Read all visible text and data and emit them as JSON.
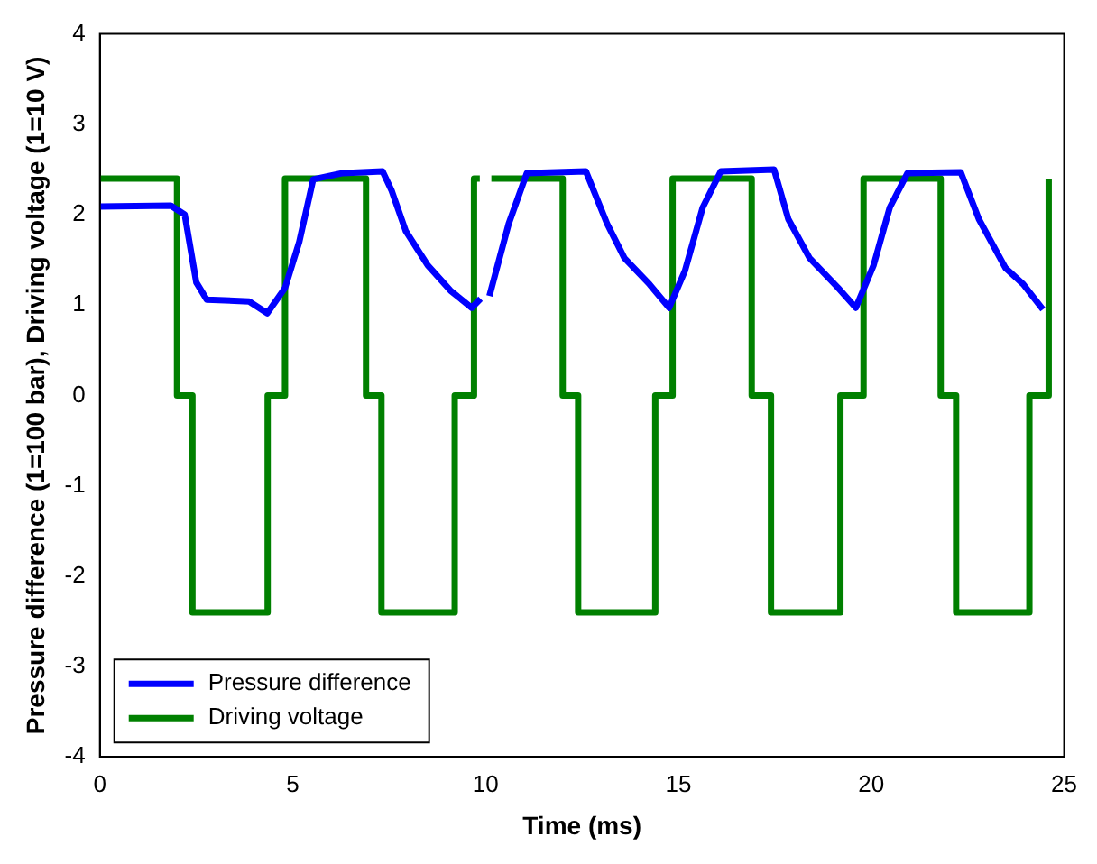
{
  "chart_data": {
    "type": "line",
    "xlabel": "Time (ms)",
    "ylabel": "Pressure difference (1=100 bar), Driving voltage (1=10 V)",
    "xlim": [
      0,
      25
    ],
    "xticks": [
      0,
      5,
      10,
      15,
      20,
      25
    ],
    "ylim": [
      -4,
      4
    ],
    "yticks": [
      -4,
      -3,
      -2,
      -1,
      0,
      1,
      2,
      3,
      4
    ],
    "grid": false,
    "legend": "bottom left",
    "marker": "none",
    "line_style": "solid",
    "series": [
      {
        "name": "Pressure difference",
        "color": "#0000ff",
        "x": [
          0,
          1.84,
          2.2,
          2.5,
          2.77,
          3.87,
          4.34,
          4.8,
          5.17,
          5.53,
          6.3,
          7.33,
          7.56,
          7.93,
          8.5,
          9.09,
          9.64,
          9.87,
          9.95,
          10.1,
          10.6,
          11.07,
          12.6,
          13.15,
          13.6,
          14.25,
          14.76,
          15.17,
          15.63,
          16.1,
          17.48,
          17.85,
          18.4,
          19.14,
          19.6,
          20.06,
          20.48,
          20.94,
          22.32,
          22.79,
          23.48,
          23.94,
          24.45
        ],
        "values": [
          2.09,
          2.1,
          2.0,
          1.25,
          1.06,
          1.04,
          0.91,
          1.19,
          1.7,
          2.39,
          2.46,
          2.48,
          2.27,
          1.82,
          1.44,
          1.16,
          0.97,
          1.07,
          null,
          1.1,
          1.9,
          2.46,
          2.48,
          1.9,
          1.52,
          1.23,
          0.97,
          1.38,
          2.08,
          2.48,
          2.5,
          1.95,
          1.52,
          1.19,
          0.97,
          1.44,
          2.08,
          2.46,
          2.47,
          1.95,
          1.41,
          1.23,
          0.95
        ]
      },
      {
        "name": "Driving voltage",
        "color": "#008000",
        "x": [
          0,
          2.0,
          2.0,
          2.4,
          2.4,
          4.35,
          4.35,
          4.8,
          4.8,
          6.9,
          6.9,
          7.3,
          7.3,
          9.2,
          9.2,
          9.7,
          9.7,
          9.85,
          9.95,
          10.15,
          12.0,
          12.0,
          12.4,
          12.4,
          14.4,
          14.4,
          14.85,
          14.85,
          16.9,
          16.9,
          17.4,
          17.4,
          19.2,
          19.2,
          19.8,
          19.8,
          21.8,
          21.8,
          22.2,
          22.2,
          24.1,
          24.1,
          24.6,
          24.6
        ],
        "values": [
          2.4,
          2.4,
          0,
          0,
          -2.4,
          -2.4,
          0,
          0,
          2.4,
          2.4,
          0,
          0,
          -2.4,
          -2.4,
          0,
          0,
          2.4,
          2.4,
          null,
          2.4,
          2.4,
          0,
          0,
          -2.4,
          -2.4,
          0,
          0,
          2.4,
          2.4,
          0,
          0,
          -2.4,
          -2.4,
          0,
          0,
          2.4,
          2.4,
          0,
          0,
          -2.4,
          -2.4,
          0,
          0,
          2.4
        ]
      }
    ]
  }
}
